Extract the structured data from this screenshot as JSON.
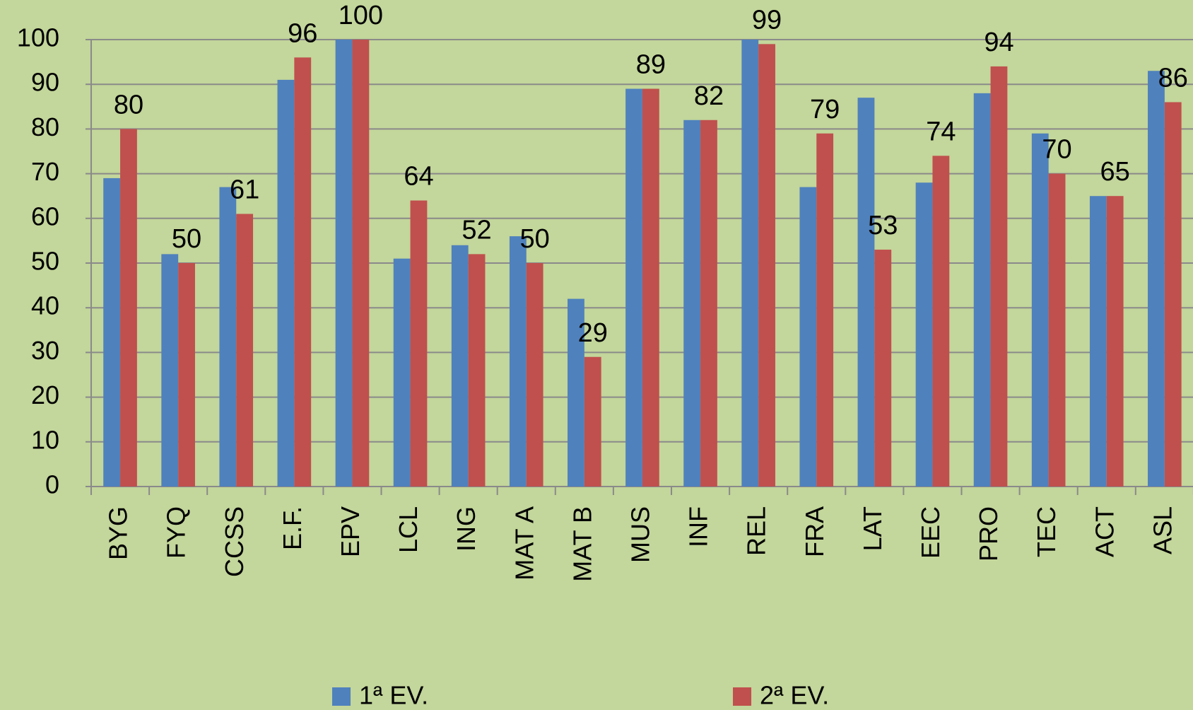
{
  "chart_data": {
    "type": "bar",
    "categories": [
      "BYG",
      "FYQ",
      "CCSS",
      "E.F.",
      "EPV",
      "LCL",
      "ING",
      "MAT A",
      "MAT B",
      "MUS",
      "INF",
      "REL",
      "FRA",
      "LAT",
      "EEC",
      "PRO",
      "TEC",
      "ACT",
      "ASL"
    ],
    "series": [
      {
        "name": "1ª EV.",
        "color": "#4f81bd",
        "values": [
          69,
          52,
          67,
          91,
          100,
          51,
          54,
          56,
          42,
          89,
          82,
          100,
          67,
          87,
          68,
          88,
          79,
          65,
          93
        ],
        "data_labels": false
      },
      {
        "name": "2ª EV.",
        "color": "#c0504d",
        "values": [
          80,
          50,
          61,
          96,
          100,
          64,
          52,
          50,
          29,
          89,
          82,
          99,
          79,
          53,
          74,
          94,
          70,
          65,
          86
        ],
        "data_labels": true
      }
    ],
    "ylim": [
      0,
      100
    ],
    "yticks": [
      0,
      10,
      20,
      30,
      40,
      50,
      60,
      70,
      80,
      90,
      100
    ],
    "grid": true,
    "legend": "bottom"
  }
}
